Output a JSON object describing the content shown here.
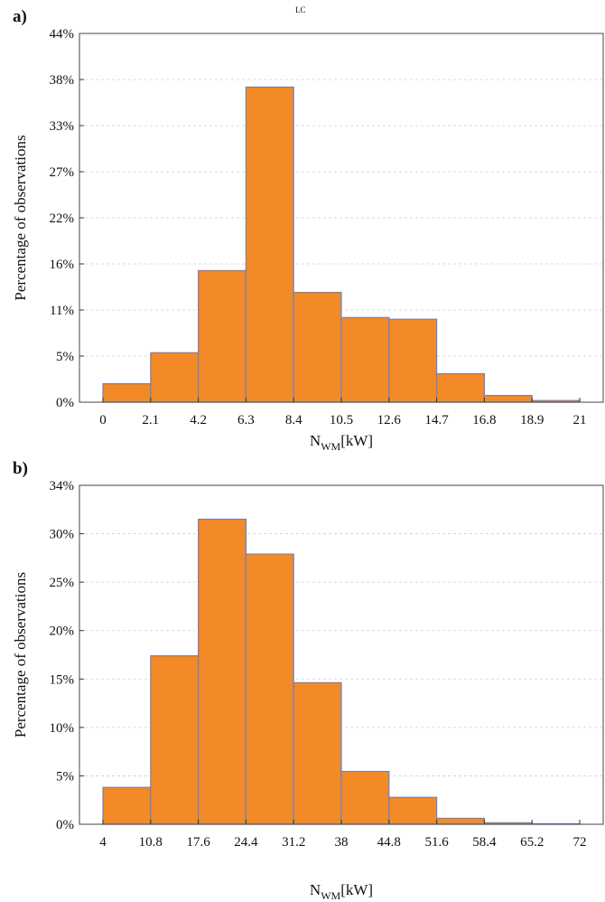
{
  "top_fragment": "LC",
  "chart_data": [
    {
      "type": "bar",
      "panel_label": "a)",
      "ylabel": "Percentage of observations",
      "xlabel_main": "N",
      "xlabel_sub": "WM",
      "xlabel_unit": "[kW]",
      "x_ticks": [
        "0",
        "2.1",
        "4.2",
        "6.3",
        "8.4",
        "10.5",
        "12.6",
        "14.7",
        "16.8",
        "18.9",
        "21"
      ],
      "y_ticks": [
        "0%",
        "5%",
        "11%",
        "16%",
        "22%",
        "27%",
        "33%",
        "38%",
        "44%"
      ],
      "ylim": [
        0,
        44
      ],
      "grid": true,
      "bar_color": "#f28a27",
      "bar_edge_color": "#6f82b8",
      "values": [
        2.2,
        5.9,
        15.7,
        37.6,
        13.1,
        10.1,
        9.9,
        3.4,
        0.8,
        0.2
      ]
    },
    {
      "type": "bar",
      "panel_label": "b)",
      "ylabel": "Percentage of observations",
      "xlabel_main": "N",
      "xlabel_sub": "WM",
      "xlabel_unit": "[kW]",
      "x_ticks": [
        "4",
        "10.8",
        "17.6",
        "24.4",
        "31.2",
        "38",
        "44.8",
        "51.6",
        "58.4",
        "65.2",
        "72"
      ],
      "y_ticks": [
        "0%",
        "5%",
        "10%",
        "15%",
        "20%",
        "25%",
        "30%",
        "34%"
      ],
      "ylim": [
        0,
        34
      ],
      "grid": true,
      "bar_color": "#f28a27",
      "bar_edge_color": "#6f82b8",
      "values": [
        3.7,
        16.9,
        30.6,
        27.1,
        14.2,
        5.3,
        2.7,
        0.6,
        0.15,
        0.05
      ]
    }
  ]
}
